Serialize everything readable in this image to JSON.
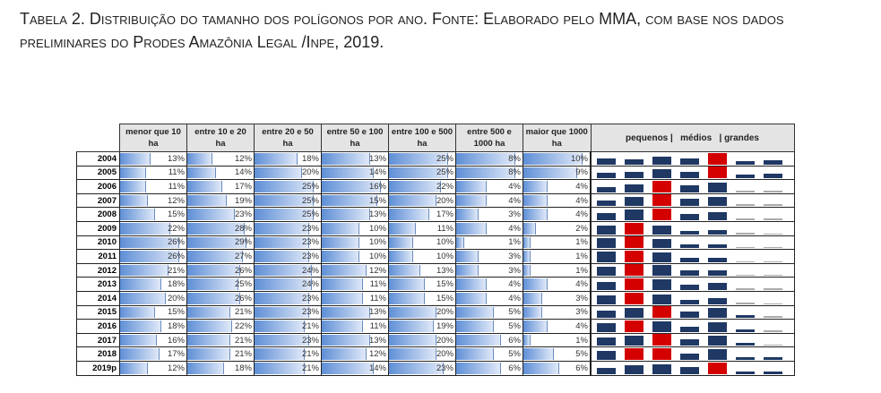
{
  "caption": "Tabela 2. Distribuição do tamanho dos polígonos por ano. Fonte: Elaborado pelo MMA, com base nos dados preliminares do Prodes Amazônia Legal /Inpe, 2019.",
  "headers": [
    "menor que 10 ha",
    "entre 10 e 20 ha",
    "entre 20 e 50 ha",
    "entre 50 e 100 ha",
    "entre 100 e 500 ha",
    "entre 500 e 1000 ha",
    "maior que 1000 ha"
  ],
  "sparkline_header": "pequenos |   médios   | grandes",
  "colors": {
    "bar": "#5f8fd6",
    "spark": "#1f3864",
    "spark_max": "#d40000"
  },
  "rows": [
    {
      "year": "2004",
      "values": [
        13,
        12,
        18,
        13,
        25,
        8,
        10
      ]
    },
    {
      "year": "2005",
      "values": [
        11,
        14,
        20,
        14,
        25,
        8,
        9
      ]
    },
    {
      "year": "2006",
      "values": [
        11,
        17,
        25,
        16,
        22,
        4,
        4
      ]
    },
    {
      "year": "2007",
      "values": [
        12,
        19,
        25,
        15,
        20,
        4,
        4
      ]
    },
    {
      "year": "2008",
      "values": [
        15,
        23,
        25,
        13,
        17,
        3,
        4
      ]
    },
    {
      "year": "2009",
      "values": [
        22,
        28,
        23,
        10,
        11,
        4,
        2
      ]
    },
    {
      "year": "2010",
      "values": [
        26,
        29,
        23,
        10,
        10,
        1,
        1
      ]
    },
    {
      "year": "2011",
      "values": [
        26,
        27,
        23,
        10,
        10,
        3,
        1
      ]
    },
    {
      "year": "2012",
      "values": [
        21,
        26,
        24,
        12,
        13,
        3,
        1
      ]
    },
    {
      "year": "2013",
      "values": [
        18,
        25,
        24,
        11,
        15,
        4,
        4
      ]
    },
    {
      "year": "2014",
      "values": [
        20,
        26,
        23,
        11,
        15,
        4,
        3
      ]
    },
    {
      "year": "2015",
      "values": [
        15,
        21,
        23,
        13,
        20,
        5,
        3
      ]
    },
    {
      "year": "2016",
      "values": [
        18,
        22,
        21,
        11,
        19,
        5,
        4
      ]
    },
    {
      "year": "2017",
      "values": [
        16,
        21,
        23,
        13,
        20,
        6,
        1
      ]
    },
    {
      "year": "2018",
      "values": [
        17,
        21,
        21,
        12,
        20,
        5,
        5
      ]
    },
    {
      "year": "2019p",
      "values": [
        12,
        18,
        21,
        14,
        23,
        6,
        6
      ]
    }
  ]
}
